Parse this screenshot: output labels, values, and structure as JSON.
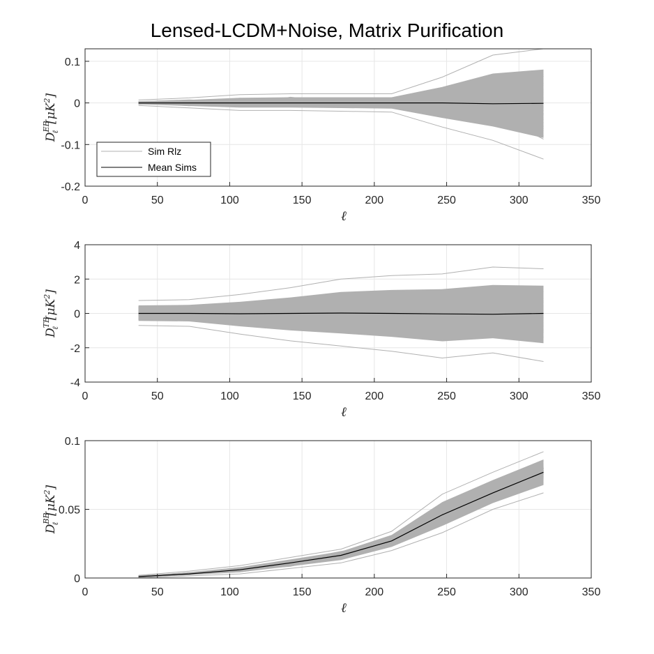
{
  "figure_title": "Lensed-LCDM+Noise, Matrix Purification",
  "colors": {
    "sims": "#b0b0b0",
    "mean": "#000000",
    "grid": "#e6e6e6",
    "axis": "#262626"
  },
  "legend": {
    "items": [
      "Sim Rlz",
      "Mean Sims"
    ],
    "placement": "lower-left of top panel"
  },
  "chart_data": [
    {
      "type": "line",
      "title": "Lensed-LCDM+Noise, Matrix Purification",
      "xlabel": "ℓ",
      "ylabel": {
        "main": "D",
        "sub": "ℓ",
        "sup": "EB",
        "unit": "[μK",
        "unit_sup": "2",
        "unit_close": "]"
      },
      "xlim": [
        0,
        350
      ],
      "ylim": [
        -0.2,
        0.13
      ],
      "xticks": [
        0,
        50,
        100,
        150,
        200,
        250,
        300,
        350
      ],
      "yticks": [
        -0.2,
        -0.1,
        0,
        0.1
      ],
      "ytick_labels": [
        "-0.2",
        "-0.1",
        "0",
        "0.1"
      ],
      "grid": true,
      "x": [
        37,
        72,
        107,
        142,
        177,
        212,
        247,
        282,
        317
      ],
      "series": [
        {
          "name": "Mean Sims",
          "values": [
            0.0,
            0.0,
            0.0,
            0.0,
            0.0,
            0.0,
            0.0,
            -0.002,
            -0.001
          ]
        },
        {
          "name": "Sim Rlz",
          "role": "spread_upper_extreme",
          "values": [
            0.007,
            0.012,
            0.02,
            0.022,
            0.022,
            0.022,
            0.062,
            0.115,
            0.13
          ]
        },
        {
          "name": "Sim Rlz",
          "role": "spread_lower_extreme",
          "values": [
            -0.006,
            -0.012,
            -0.018,
            -0.018,
            -0.02,
            -0.022,
            -0.058,
            -0.09,
            -0.135
          ]
        }
      ]
    },
    {
      "type": "line",
      "xlabel": "ℓ",
      "ylabel": {
        "main": "D",
        "sub": "ℓ",
        "sup": "TB",
        "unit": "[μK",
        "unit_sup": "2",
        "unit_close": "]"
      },
      "xlim": [
        0,
        350
      ],
      "ylim": [
        -4,
        4
      ],
      "xticks": [
        0,
        50,
        100,
        150,
        200,
        250,
        300,
        350
      ],
      "yticks": [
        -4,
        -2,
        0,
        2,
        4
      ],
      "ytick_labels": [
        "-4",
        "-2",
        "0",
        "2",
        "4"
      ],
      "grid": true,
      "x": [
        37,
        72,
        107,
        142,
        177,
        212,
        247,
        282,
        317
      ],
      "series": [
        {
          "name": "Mean Sims",
          "values": [
            0.0,
            0.0,
            -0.02,
            0.0,
            0.02,
            0.0,
            -0.03,
            -0.05,
            0.0
          ]
        },
        {
          "name": "Sim Rlz",
          "role": "spread_upper_extreme",
          "values": [
            0.75,
            0.8,
            1.1,
            1.5,
            2.0,
            2.2,
            2.3,
            2.7,
            2.6
          ]
        },
        {
          "name": "Sim Rlz",
          "role": "spread_lower_extreme",
          "values": [
            -0.7,
            -0.75,
            -1.2,
            -1.6,
            -1.9,
            -2.2,
            -2.6,
            -2.3,
            -2.8
          ]
        }
      ]
    },
    {
      "type": "line",
      "xlabel": "ℓ",
      "ylabel": {
        "main": "D",
        "sub": "ℓ",
        "sup": "BB",
        "unit": "[μK",
        "unit_sup": "2",
        "unit_close": "]"
      },
      "xlim": [
        0,
        350
      ],
      "ylim": [
        0,
        0.1
      ],
      "xticks": [
        0,
        50,
        100,
        150,
        200,
        250,
        300,
        350
      ],
      "yticks": [
        0,
        0.05,
        0.1
      ],
      "ytick_labels": [
        "0",
        "0.05",
        "0.1"
      ],
      "grid": true,
      "x": [
        37,
        72,
        107,
        142,
        177,
        212,
        247,
        282,
        317
      ],
      "series": [
        {
          "name": "Mean Sims",
          "values": [
            0.001,
            0.003,
            0.006,
            0.011,
            0.0165,
            0.027,
            0.046,
            0.062,
            0.077
          ]
        },
        {
          "name": "Sim Rlz",
          "role": "spread_upper_extreme",
          "values": [
            0.002,
            0.005,
            0.009,
            0.015,
            0.021,
            0.034,
            0.061,
            0.077,
            0.092
          ]
        },
        {
          "name": "Sim Rlz",
          "role": "spread_lower_extreme",
          "values": [
            0.0002,
            0.0015,
            0.003,
            0.007,
            0.011,
            0.02,
            0.033,
            0.05,
            0.062
          ]
        }
      ]
    }
  ]
}
